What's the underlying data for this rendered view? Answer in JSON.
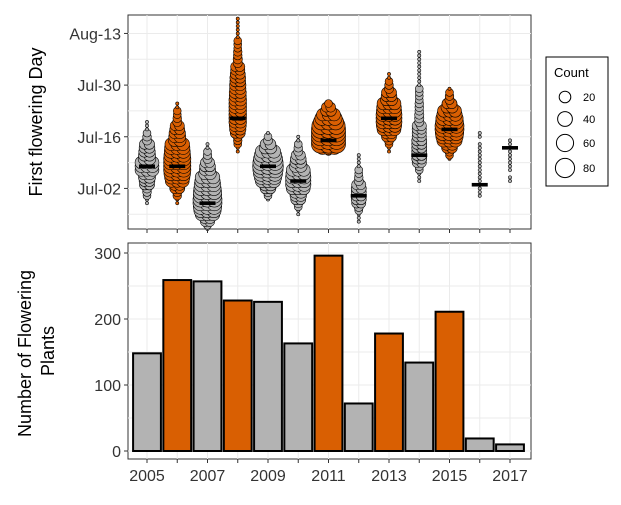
{
  "colors": {
    "highlight": "#d95f02",
    "base": "#b3b3b3",
    "grid": "#ebebeb",
    "border": "#333333",
    "text": "#000000"
  },
  "chart_data": [
    {
      "type": "scatter",
      "subtype": "beeswarm",
      "ylabel": "First flowering Day",
      "y_tick_labels": [
        "Jul-02",
        "Jul-16",
        "Jul-30",
        "Aug-13"
      ],
      "y_tick_dates": [
        "07-02",
        "07-16",
        "07-30",
        "08-13"
      ],
      "ylim_dates": [
        "06-21",
        "08-18"
      ],
      "legend": {
        "title": "Count",
        "position": "right",
        "entries": [
          20,
          40,
          60,
          80
        ]
      },
      "series": [
        {
          "year": 2005,
          "median": "07-08",
          "min": "06-28",
          "max": "07-20",
          "color": "base"
        },
        {
          "year": 2006,
          "median": "07-08",
          "min": "06-28",
          "max": "07-25",
          "color": "highlight"
        },
        {
          "year": 2007,
          "median": "06-28",
          "min": "06-21",
          "max": "07-14",
          "color": "base"
        },
        {
          "year": 2008,
          "median": "07-21",
          "min": "07-12",
          "max": "08-17",
          "color": "highlight"
        },
        {
          "year": 2009,
          "median": "07-08",
          "min": "06-29",
          "max": "07-17",
          "color": "base"
        },
        {
          "year": 2010,
          "median": "07-04",
          "min": "06-25",
          "max": "07-16",
          "color": "base"
        },
        {
          "year": 2011,
          "median": "07-15",
          "min": "07-12",
          "max": "07-25",
          "color": "highlight"
        },
        {
          "year": 2012,
          "median": "06-30",
          "min": "06-23",
          "max": "07-11",
          "color": "base"
        },
        {
          "year": 2013,
          "median": "07-21",
          "min": "07-12",
          "max": "08-02",
          "color": "highlight"
        },
        {
          "year": 2014,
          "median": "07-11",
          "min": "07-04",
          "max": "08-08",
          "color": "base"
        },
        {
          "year": 2015,
          "median": "07-18",
          "min": "07-10",
          "max": "07-29",
          "color": "highlight"
        },
        {
          "year": 2016,
          "median": "07-03",
          "min": "06-28",
          "max": "07-18",
          "color": "base"
        },
        {
          "year": 2017,
          "median": "07-13",
          "min": "07-03",
          "max": "07-15",
          "color": "base"
        }
      ]
    },
    {
      "type": "bar",
      "ylabel_lines": [
        "Number of Flowering",
        "Plants"
      ],
      "ylim": [
        0,
        310
      ],
      "y_ticks": [
        0,
        100,
        200,
        300
      ],
      "x_tick_labels": [
        "2005",
        "2007",
        "2009",
        "2011",
        "2013",
        "2015",
        "2017"
      ],
      "categories": [
        2005,
        2006,
        2007,
        2008,
        2009,
        2010,
        2011,
        2012,
        2013,
        2014,
        2015,
        2016,
        2017
      ],
      "values": [
        148,
        259,
        257,
        228,
        226,
        163,
        296,
        72,
        178,
        134,
        211,
        19,
        10
      ],
      "bar_colors": [
        "base",
        "highlight",
        "base",
        "highlight",
        "base",
        "base",
        "highlight",
        "base",
        "highlight",
        "base",
        "highlight",
        "base",
        "base"
      ]
    }
  ]
}
